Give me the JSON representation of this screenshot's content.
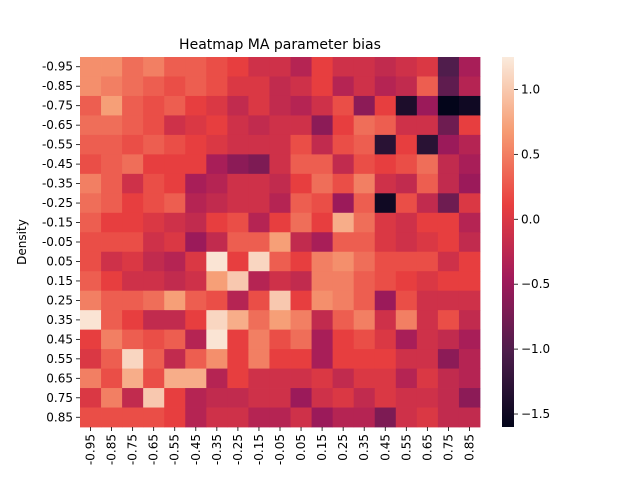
{
  "chart_data": {
    "type": "heatmap",
    "title": "Heatmap MA parameter bias",
    "y_label": "Density",
    "x": [
      "-0.95",
      "-0.85",
      "-0.75",
      "-0.65",
      "-0.55",
      "-0.45",
      "-0.35",
      "-0.25",
      "-0.15",
      "-0.05",
      "0.05",
      "0.15",
      "0.25",
      "0.35",
      "0.45",
      "0.55",
      "0.65",
      "0.75",
      "0.85"
    ],
    "y": [
      "-0.95",
      "-0.85",
      "-0.75",
      "-0.65",
      "-0.55",
      "-0.45",
      "-0.35",
      "-0.25",
      "-0.15",
      "-0.05",
      "0.05",
      "0.15",
      "0.25",
      "0.35",
      "0.45",
      "0.55",
      "0.65",
      "0.75",
      "0.85"
    ],
    "values": [
      [
        0.6,
        0.6,
        0.4,
        0.5,
        0.3,
        0.3,
        0.2,
        0.1,
        -0.1,
        -0.1,
        -0.3,
        0.1,
        -0.1,
        -0.1,
        -0.2,
        -0.1,
        0.0,
        -1.0,
        -0.4
      ],
      [
        0.6,
        0.5,
        0.4,
        0.3,
        0.2,
        0.3,
        0.2,
        0.0,
        0.0,
        -0.2,
        -0.1,
        0.1,
        -0.3,
        -0.1,
        -0.3,
        -0.2,
        0.3,
        -0.9,
        -0.3
      ],
      [
        0.3,
        0.7,
        0.3,
        0.2,
        0.3,
        0.1,
        0.0,
        -0.2,
        0.0,
        -0.2,
        -0.3,
        -0.1,
        0.2,
        -0.6,
        0.1,
        -1.4,
        -0.5,
        -1.6,
        -1.5
      ],
      [
        0.4,
        0.4,
        0.3,
        0.2,
        -0.1,
        0.0,
        0.1,
        -0.1,
        -0.2,
        -0.1,
        -0.1,
        -0.6,
        0.1,
        0.4,
        0.3,
        -0.1,
        -0.1,
        -0.8,
        0.1
      ],
      [
        0.3,
        0.3,
        0.2,
        0.3,
        0.2,
        0.1,
        0.0,
        -0.1,
        -0.1,
        -0.1,
        0.2,
        -0.2,
        0.2,
        0.3,
        -1.3,
        0.1,
        -1.3,
        -0.5,
        -0.3
      ],
      [
        0.2,
        0.3,
        0.4,
        0.1,
        0.1,
        0.1,
        -0.4,
        -0.6,
        -0.7,
        -0.1,
        0.3,
        0.3,
        -0.2,
        0.2,
        0.1,
        0.2,
        0.4,
        -0.2,
        -0.4
      ],
      [
        0.5,
        0.3,
        -0.1,
        0.2,
        0.1,
        -0.4,
        -0.3,
        -0.1,
        -0.1,
        -0.2,
        0.1,
        0.4,
        0.2,
        0.5,
        -0.1,
        -0.2,
        0.3,
        -0.2,
        -0.5
      ],
      [
        0.4,
        0.3,
        0.1,
        0.2,
        0.3,
        -0.3,
        -0.2,
        -0.1,
        -0.1,
        -0.3,
        0.3,
        0.2,
        -0.5,
        0.3,
        -1.5,
        0.2,
        -0.2,
        -0.8,
        0.0
      ],
      [
        0.3,
        0.1,
        0.1,
        0.0,
        -0.1,
        -0.2,
        0.1,
        0.2,
        -0.3,
        0.1,
        0.4,
        0.1,
        0.8,
        0.4,
        0.0,
        -0.1,
        0.1,
        0.1,
        -0.3
      ],
      [
        0.2,
        0.2,
        0.2,
        -0.1,
        0.0,
        -0.5,
        -0.2,
        0.3,
        0.3,
        0.7,
        -0.2,
        -0.4,
        0.3,
        0.3,
        0.0,
        -0.1,
        0.0,
        0.1,
        -0.2
      ],
      [
        0.2,
        -0.1,
        0.0,
        -0.2,
        -0.3,
        0.0,
        1.2,
        0.1,
        1.1,
        0.3,
        0.1,
        0.5,
        0.6,
        0.4,
        0.2,
        0.2,
        0.2,
        -0.1,
        0.1
      ],
      [
        0.3,
        0.1,
        -0.1,
        -0.1,
        -0.2,
        -0.1,
        0.7,
        1.0,
        -0.3,
        -0.1,
        -0.2,
        0.5,
        0.5,
        0.3,
        0.2,
        0.1,
        0.0,
        0.1,
        0.1
      ],
      [
        0.5,
        0.3,
        0.3,
        0.4,
        0.7,
        0.3,
        0.2,
        -0.3,
        0.2,
        1.0,
        0.1,
        0.6,
        0.5,
        0.3,
        -0.5,
        0.2,
        -0.1,
        -0.1,
        -0.1
      ],
      [
        1.2,
        0.3,
        0.1,
        -0.2,
        -0.2,
        0.1,
        1.1,
        0.8,
        0.4,
        0.7,
        0.5,
        -0.2,
        0.3,
        0.5,
        -0.1,
        0.5,
        -0.1,
        0.2,
        -0.2
      ],
      [
        0.1,
        0.5,
        0.3,
        0.2,
        0.3,
        -0.3,
        1.2,
        0.1,
        0.5,
        0.2,
        0.4,
        -0.4,
        0.1,
        0.2,
        0.0,
        -0.4,
        -0.1,
        -0.2,
        -0.4
      ],
      [
        0.0,
        0.3,
        1.1,
        0.3,
        -0.2,
        0.3,
        0.6,
        0.1,
        0.5,
        0.1,
        0.1,
        -0.4,
        0.1,
        0.1,
        0.1,
        -0.1,
        -0.1,
        -0.6,
        -0.3
      ],
      [
        0.5,
        0.2,
        0.8,
        0.2,
        0.8,
        0.8,
        -0.3,
        0.1,
        -0.1,
        -0.1,
        -0.1,
        0.0,
        -0.2,
        0.0,
        0.0,
        -0.3,
        0.0,
        -0.2,
        -0.3
      ],
      [
        0.0,
        0.5,
        -0.2,
        1.0,
        0.1,
        -0.3,
        -0.2,
        -0.2,
        -0.1,
        -0.1,
        -0.5,
        -0.1,
        0.0,
        -0.2,
        0.0,
        -0.1,
        -0.1,
        -0.2,
        -0.6
      ],
      [
        0.2,
        0.2,
        0.2,
        0.2,
        0.1,
        -0.3,
        -0.1,
        -0.1,
        -0.3,
        -0.3,
        -0.1,
        -0.5,
        -0.3,
        -0.3,
        -0.7,
        -0.1,
        0.0,
        -0.2,
        -0.2
      ]
    ],
    "colormap": "rocket",
    "clim": [
      -1.6,
      1.25
    ],
    "cticks": [
      {
        "value": -1.5,
        "label": "−1.5"
      },
      {
        "value": -1.0,
        "label": "−1.0"
      },
      {
        "value": -0.5,
        "label": "−0.5"
      },
      {
        "value": 0.0,
        "label": "0.0"
      },
      0.5,
      {
        "value": 1.0,
        "label": "1.0"
      }
    ]
  }
}
